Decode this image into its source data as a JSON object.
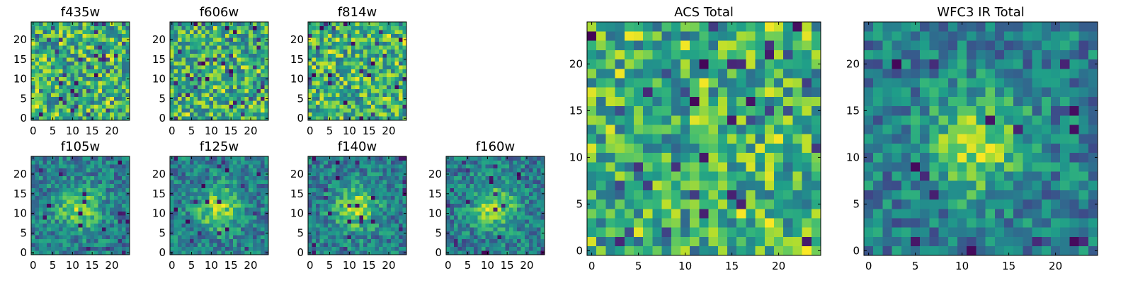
{
  "figure": {
    "type": "image-grid",
    "colormap": "viridis"
  },
  "chart_data": [
    {
      "type": "heatmap",
      "title": "f435w",
      "xlim": [
        0,
        24
      ],
      "ylim": [
        0,
        24
      ],
      "xticks": [
        0,
        5,
        10,
        15,
        20
      ],
      "yticks": [
        0,
        5,
        10,
        15,
        20
      ],
      "grid_size": 25,
      "pattern": "noise",
      "seed": 11
    },
    {
      "type": "heatmap",
      "title": "f606w",
      "xlim": [
        0,
        24
      ],
      "ylim": [
        0,
        24
      ],
      "xticks": [
        0,
        5,
        10,
        15,
        20
      ],
      "yticks": [
        0,
        5,
        10,
        15,
        20
      ],
      "grid_size": 25,
      "pattern": "noise",
      "seed": 23
    },
    {
      "type": "heatmap",
      "title": "f814w",
      "xlim": [
        0,
        24
      ],
      "ylim": [
        0,
        24
      ],
      "xticks": [
        0,
        5,
        10,
        15,
        20
      ],
      "yticks": [
        0,
        5,
        10,
        15,
        20
      ],
      "grid_size": 25,
      "pattern": "noise",
      "seed": 37
    },
    {
      "type": "heatmap",
      "title": "f105w",
      "xlim": [
        0,
        24
      ],
      "ylim": [
        0,
        24
      ],
      "xticks": [
        0,
        5,
        10,
        15,
        20
      ],
      "yticks": [
        0,
        5,
        10,
        15,
        20
      ],
      "grid_size": 25,
      "pattern": "center-source",
      "seed": 41
    },
    {
      "type": "heatmap",
      "title": "f125w",
      "xlim": [
        0,
        24
      ],
      "ylim": [
        0,
        24
      ],
      "xticks": [
        0,
        5,
        10,
        15,
        20
      ],
      "yticks": [
        0,
        5,
        10,
        15,
        20
      ],
      "grid_size": 25,
      "pattern": "center-source",
      "seed": 53
    },
    {
      "type": "heatmap",
      "title": "f140w",
      "xlim": [
        0,
        24
      ],
      "ylim": [
        0,
        24
      ],
      "xticks": [
        0,
        5,
        10,
        15,
        20
      ],
      "yticks": [
        0,
        5,
        10,
        15,
        20
      ],
      "grid_size": 25,
      "pattern": "center-source",
      "seed": 67
    },
    {
      "type": "heatmap",
      "title": "f160w",
      "xlim": [
        0,
        24
      ],
      "ylim": [
        0,
        24
      ],
      "xticks": [
        0,
        5,
        10,
        15,
        20
      ],
      "yticks": [
        0,
        5,
        10,
        15,
        20
      ],
      "grid_size": 25,
      "pattern": "center-source",
      "seed": 71
    },
    {
      "type": "heatmap",
      "title": "ACS Total",
      "xlim": [
        0,
        24
      ],
      "ylim": [
        0,
        24
      ],
      "xticks": [
        0,
        5,
        10,
        15,
        20
      ],
      "yticks": [
        0,
        5,
        10,
        15,
        20
      ],
      "grid_size": 25,
      "pattern": "noise",
      "seed": 83
    },
    {
      "type": "heatmap",
      "title": "WFC3 IR Total",
      "xlim": [
        0,
        24
      ],
      "ylim": [
        0,
        24
      ],
      "xticks": [
        0,
        5,
        10,
        15,
        20
      ],
      "yticks": [
        0,
        5,
        10,
        15,
        20
      ],
      "grid_size": 25,
      "pattern": "center-source",
      "seed": 97
    }
  ]
}
